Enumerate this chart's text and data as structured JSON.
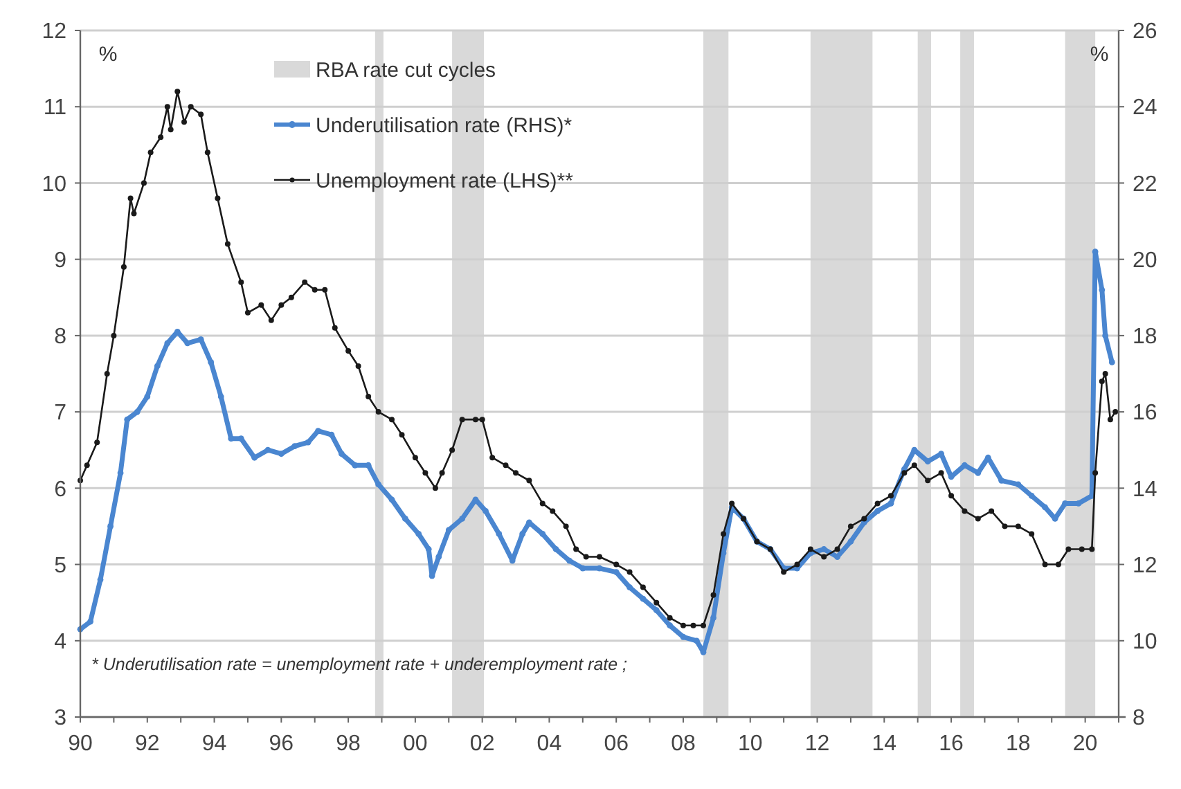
{
  "chart_data": {
    "type": "line",
    "ylabel": "%",
    "y2label": "%",
    "xlim": [
      1990,
      2021
    ],
    "xticks": [
      {
        "value": 1990,
        "label": "90"
      },
      {
        "value": 1991,
        "label": null
      },
      {
        "value": 1992,
        "label": "92"
      },
      {
        "value": 1993,
        "label": null
      },
      {
        "value": 1994,
        "label": "94"
      },
      {
        "value": 1995,
        "label": null
      },
      {
        "value": 1996,
        "label": "96"
      },
      {
        "value": 1997,
        "label": null
      },
      {
        "value": 1998,
        "label": "98"
      },
      {
        "value": 1999,
        "label": null
      },
      {
        "value": 2000,
        "label": "00"
      },
      {
        "value": 2001,
        "label": null
      },
      {
        "value": 2002,
        "label": "02"
      },
      {
        "value": 2003,
        "label": null
      },
      {
        "value": 2004,
        "label": "04"
      },
      {
        "value": 2005,
        "label": null
      },
      {
        "value": 2006,
        "label": "06"
      },
      {
        "value": 2007,
        "label": null
      },
      {
        "value": 2008,
        "label": "08"
      },
      {
        "value": 2009,
        "label": null
      },
      {
        "value": 2010,
        "label": "10"
      },
      {
        "value": 2011,
        "label": null
      },
      {
        "value": 2012,
        "label": "12"
      },
      {
        "value": 2013,
        "label": null
      },
      {
        "value": 2014,
        "label": "14"
      },
      {
        "value": 2015,
        "label": null
      },
      {
        "value": 2016,
        "label": "16"
      },
      {
        "value": 2017,
        "label": null
      },
      {
        "value": 2018,
        "label": "18"
      },
      {
        "value": 2019,
        "label": null
      },
      {
        "value": 2020,
        "label": "20"
      },
      {
        "value": 2021,
        "label": null
      }
    ],
    "ylim": [
      3,
      12
    ],
    "yticks": [
      3,
      4,
      5,
      6,
      7,
      8,
      9,
      10,
      11,
      12
    ],
    "y2lim": [
      8,
      26
    ],
    "y2ticks": [
      8,
      10,
      12,
      14,
      16,
      18,
      20,
      22,
      24,
      26
    ],
    "grid": "y",
    "legend": "top",
    "marker": "circle",
    "line_style": "solid",
    "bands": [
      {
        "axis": "x",
        "from": 1998.8,
        "to": 1999.05,
        "label": "RBA rate cut cycles",
        "color": "#d9d9d9"
      },
      {
        "axis": "x",
        "from": 2001.1,
        "to": 2002.05,
        "color": "#d9d9d9"
      },
      {
        "axis": "x",
        "from": 2008.6,
        "to": 2009.35,
        "color": "#d9d9d9"
      },
      {
        "axis": "x",
        "from": 2011.8,
        "to": 2013.65,
        "color": "#d9d9d9"
      },
      {
        "axis": "x",
        "from": 2015.0,
        "to": 2015.4,
        "color": "#d9d9d9"
      },
      {
        "axis": "x",
        "from": 2016.27,
        "to": 2016.68,
        "color": "#d9d9d9"
      },
      {
        "axis": "x",
        "from": 2019.4,
        "to": 2020.3,
        "color": "#d9d9d9"
      }
    ],
    "series": [
      {
        "name": "Underutilisation rate (RHS)*",
        "color": "#4a86d0",
        "axis": "y2",
        "x": [
          1990.0,
          1990.3,
          1990.6,
          1990.9,
          1991.2,
          1991.4,
          1991.7,
          1992.0,
          1992.3,
          1992.6,
          1992.9,
          1993.2,
          1993.6,
          1993.9,
          1994.2,
          1994.5,
          1994.8,
          1995.2,
          1995.6,
          1996.0,
          1996.4,
          1996.8,
          1997.1,
          1997.5,
          1997.8,
          1998.2,
          1998.6,
          1998.9,
          1999.3,
          1999.7,
          2000.1,
          2000.4,
          2000.5,
          2000.7,
          2001.0,
          2001.4,
          2001.8,
          2002.1,
          2002.5,
          2002.9,
          2003.2,
          2003.4,
          2003.8,
          2004.2,
          2004.6,
          2005.0,
          2005.5,
          2006.0,
          2006.4,
          2006.8,
          2007.2,
          2007.6,
          2008.0,
          2008.4,
          2008.6,
          2008.9,
          2009.2,
          2009.45,
          2009.8,
          2010.2,
          2010.6,
          2011.0,
          2011.4,
          2011.8,
          2012.2,
          2012.6,
          2013.0,
          2013.4,
          2013.8,
          2014.2,
          2014.6,
          2014.9,
          2015.3,
          2015.7,
          2016.0,
          2016.4,
          2016.8,
          2017.1,
          2017.5,
          2018.0,
          2018.4,
          2018.8,
          2019.1,
          2019.4,
          2019.8,
          2020.2,
          2020.3,
          2020.5,
          2020.6,
          2020.8
        ],
        "values": [
          10.3,
          10.5,
          11.6,
          13.0,
          14.4,
          15.8,
          16.0,
          16.4,
          17.2,
          17.8,
          18.1,
          17.8,
          17.9,
          17.3,
          16.4,
          15.3,
          15.3,
          14.8,
          15.0,
          14.9,
          15.1,
          15.2,
          15.5,
          15.4,
          14.9,
          14.6,
          14.6,
          14.1,
          13.7,
          13.2,
          12.8,
          12.4,
          11.7,
          12.2,
          12.9,
          13.2,
          13.7,
          13.4,
          12.8,
          12.1,
          12.8,
          13.1,
          12.8,
          12.4,
          12.1,
          11.9,
          11.9,
          11.8,
          11.4,
          11.1,
          10.8,
          10.4,
          10.1,
          10.0,
          9.7,
          10.6,
          12.3,
          13.5,
          13.2,
          12.6,
          12.4,
          11.9,
          11.9,
          12.3,
          12.4,
          12.2,
          12.6,
          13.1,
          13.4,
          13.6,
          14.5,
          15.0,
          14.7,
          14.9,
          14.3,
          14.6,
          14.4,
          14.8,
          14.2,
          14.1,
          13.8,
          13.5,
          13.2,
          13.6,
          13.6,
          13.8,
          20.2,
          19.2,
          18.0,
          17.3
        ]
      },
      {
        "name": "Unemployment rate (LHS)**",
        "color": "#1a1a1a",
        "x": [
          1990.0,
          1990.2,
          1990.5,
          1990.8,
          1991.0,
          1991.3,
          1991.5,
          1991.6,
          1991.9,
          1992.1,
          1992.4,
          1992.6,
          1992.7,
          1992.9,
          1993.1,
          1993.3,
          1993.6,
          1993.8,
          1994.1,
          1994.4,
          1994.8,
          1995.0,
          1995.4,
          1995.7,
          1996.0,
          1996.3,
          1996.7,
          1997.0,
          1997.3,
          1997.6,
          1998.0,
          1998.3,
          1998.6,
          1998.9,
          1999.3,
          1999.6,
          2000.0,
          2000.3,
          2000.6,
          2000.8,
          2001.1,
          2001.4,
          2001.8,
          2002.0,
          2002.3,
          2002.7,
          2003.0,
          2003.4,
          2003.8,
          2004.1,
          2004.5,
          2004.8,
          2005.1,
          2005.5,
          2006.0,
          2006.4,
          2006.8,
          2007.2,
          2007.6,
          2008.0,
          2008.3,
          2008.6,
          2008.9,
          2009.2,
          2009.45,
          2009.8,
          2010.2,
          2010.6,
          2011.0,
          2011.4,
          2011.8,
          2012.2,
          2012.6,
          2013.0,
          2013.4,
          2013.8,
          2014.2,
          2014.6,
          2014.9,
          2015.3,
          2015.7,
          2016.0,
          2016.4,
          2016.8,
          2017.2,
          2017.6,
          2018.0,
          2018.4,
          2018.8,
          2019.2,
          2019.5,
          2019.9,
          2020.2,
          2020.3,
          2020.5,
          2020.6,
          2020.75,
          2020.9
        ],
        "values": [
          6.1,
          6.3,
          6.6,
          7.5,
          8.0,
          8.9,
          9.8,
          9.6,
          10.0,
          10.4,
          10.6,
          11.0,
          10.7,
          11.2,
          10.8,
          11.0,
          10.9,
          10.4,
          9.8,
          9.2,
          8.7,
          8.3,
          8.4,
          8.2,
          8.4,
          8.5,
          8.7,
          8.6,
          8.6,
          8.1,
          7.8,
          7.6,
          7.2,
          7.0,
          6.9,
          6.7,
          6.4,
          6.2,
          6.0,
          6.2,
          6.5,
          6.9,
          6.9,
          6.9,
          6.4,
          6.3,
          6.2,
          6.1,
          5.8,
          5.7,
          5.5,
          5.2,
          5.1,
          5.1,
          5.0,
          4.9,
          4.7,
          4.5,
          4.3,
          4.2,
          4.2,
          4.2,
          4.6,
          5.4,
          5.8,
          5.6,
          5.3,
          5.2,
          4.9,
          5.0,
          5.2,
          5.1,
          5.2,
          5.5,
          5.6,
          5.8,
          5.9,
          6.2,
          6.3,
          6.1,
          6.2,
          5.9,
          5.7,
          5.6,
          5.7,
          5.5,
          5.5,
          5.4,
          5.0,
          5.0,
          5.2,
          5.2,
          5.2,
          6.2,
          7.4,
          7.5,
          6.9,
          7.0
        ]
      }
    ],
    "annotations": [
      "* Underutilisation rate = unemployment rate + underemployment rate ;"
    ]
  }
}
